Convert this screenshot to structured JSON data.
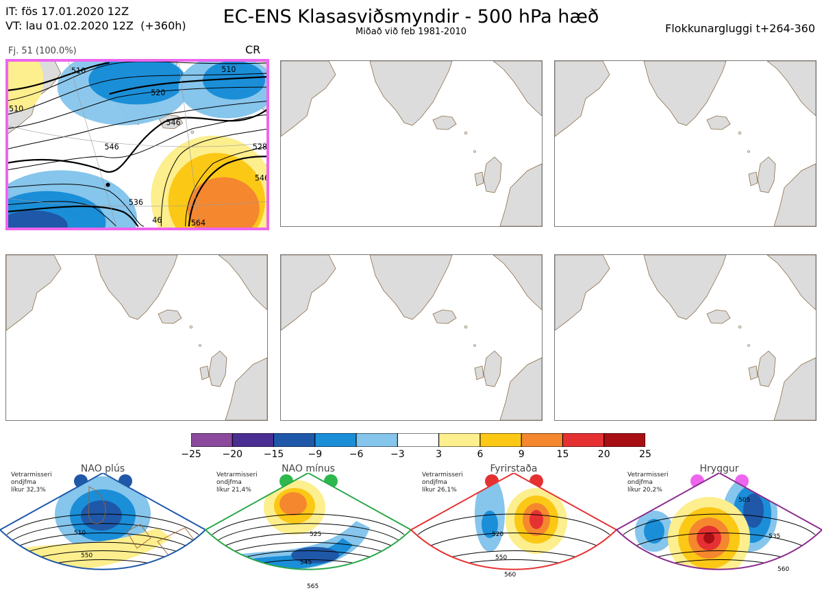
{
  "header": {
    "it_line": "IT: fös 17.01.2020 12Z",
    "vt_line": "VT: lau 01.02.2020 12Z  (+360h)",
    "title": "EC-ENS Klasasviðsmyndir - 500 hPa hæð",
    "subtitle": "Miðað við feb 1981-2010",
    "window": "Flokkunargluggi t+264-360"
  },
  "panel": {
    "caption": "Fj. 51 (100.0%)",
    "cluster": "CR",
    "contour_labels": [
      "510",
      "520",
      "510",
      "546",
      "528",
      "546",
      "536",
      "46",
      "564",
      "510",
      "546"
    ]
  },
  "colorbar": {
    "ticks": [
      "−25",
      "−20",
      "−15",
      "−9",
      "−6",
      "−3",
      "3",
      "6",
      "9",
      "15",
      "20",
      "25"
    ],
    "colors": [
      "#8b4a9e",
      "#4a2e92",
      "#1f58a8",
      "#1b8ed8",
      "#86c5ec",
      "#ffffff",
      "#fdee8e",
      "#fcc816",
      "#f5872f",
      "#e63132",
      "#a80f15"
    ]
  },
  "regimes": [
    {
      "name": "NAO plús",
      "note": "Vetrarmisseri\nondjfma\nlíkur 32,3%",
      "border": "#1f58a8",
      "dot": "#1f58a8",
      "labels": [
        "510",
        "550"
      ]
    },
    {
      "name": "NAO mínus",
      "note": "Vetrarmisseri\nondjfma\nlíkur 21,4%",
      "border": "#2ba84a",
      "dot": "#2db84d",
      "labels": [
        "525",
        "545",
        "565"
      ]
    },
    {
      "name": "Fyrirstaða",
      "note": "Vetrarmisseri\nondjfma\nlíkur 26,1%",
      "border": "#e63132",
      "dot": "#e63132",
      "labels": [
        "520",
        "550",
        "560"
      ]
    },
    {
      "name": "Hryggur",
      "note": "Vetrarmisseri\nondjfma\nlíkur 20,2%",
      "border": "#8b2c8e",
      "dot": "#ee66ee",
      "labels": [
        "505",
        "535",
        "560"
      ]
    }
  ]
}
